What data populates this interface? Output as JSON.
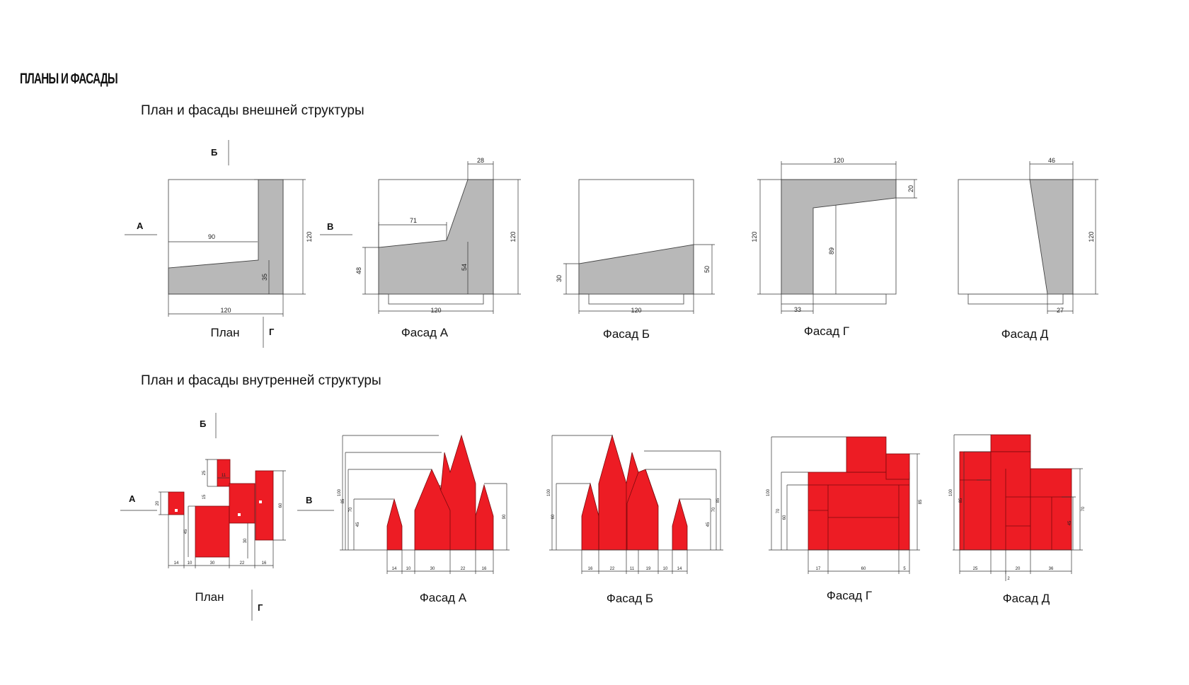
{
  "header": {
    "title": "ПЛАНЫ И ФАСАДЫ"
  },
  "sections": [
    {
      "title": "План и фасады внешней структуры"
    },
    {
      "title": "План и фасады внутренней структуры"
    }
  ],
  "outer": {
    "plan": {
      "caption": "План",
      "dims": [
        "120",
        "120",
        "90",
        "35"
      ],
      "markers": [
        "А",
        "Б",
        "В",
        "Г"
      ]
    },
    "facadeA": {
      "caption": "Фасад А",
      "dims": [
        "28",
        "71",
        "120",
        "48",
        "54",
        "120"
      ]
    },
    "facadeB": {
      "caption": "Фасад Б",
      "dims": [
        "30",
        "50",
        "120"
      ]
    },
    "facadeG": {
      "caption": "Фасад Г",
      "dims": [
        "120",
        "20",
        "120",
        "89",
        "33"
      ]
    },
    "facadeD": {
      "caption": "Фасад Д",
      "dims": [
        "46",
        "120",
        "27"
      ]
    }
  },
  "inner": {
    "plan": {
      "caption": "План",
      "markers": [
        "А",
        "Б",
        "В",
        "Г"
      ],
      "dims": [
        "20",
        "25",
        "11",
        "15",
        "45",
        "30",
        "60",
        "14",
        "10",
        "30",
        "22",
        "16"
      ]
    },
    "facadeA": {
      "caption": "Фасад А",
      "dims": [
        "100",
        "85",
        "70",
        "45",
        "90",
        "14",
        "10",
        "30",
        "22",
        "16"
      ]
    },
    "facadeB": {
      "caption": "Фасад Б",
      "dims": [
        "100",
        "60",
        "70",
        "85",
        "45",
        "16",
        "22",
        "11",
        "19",
        "10",
        "14"
      ]
    },
    "facadeG": {
      "caption": "Фасад Г",
      "dims": [
        "100",
        "70",
        "60",
        "85",
        "17",
        "60",
        "5"
      ]
    },
    "facadeD": {
      "caption": "Фасад Д",
      "dims": [
        "100",
        "85",
        "70",
        "45",
        "25",
        "20",
        "36",
        "2"
      ]
    }
  }
}
